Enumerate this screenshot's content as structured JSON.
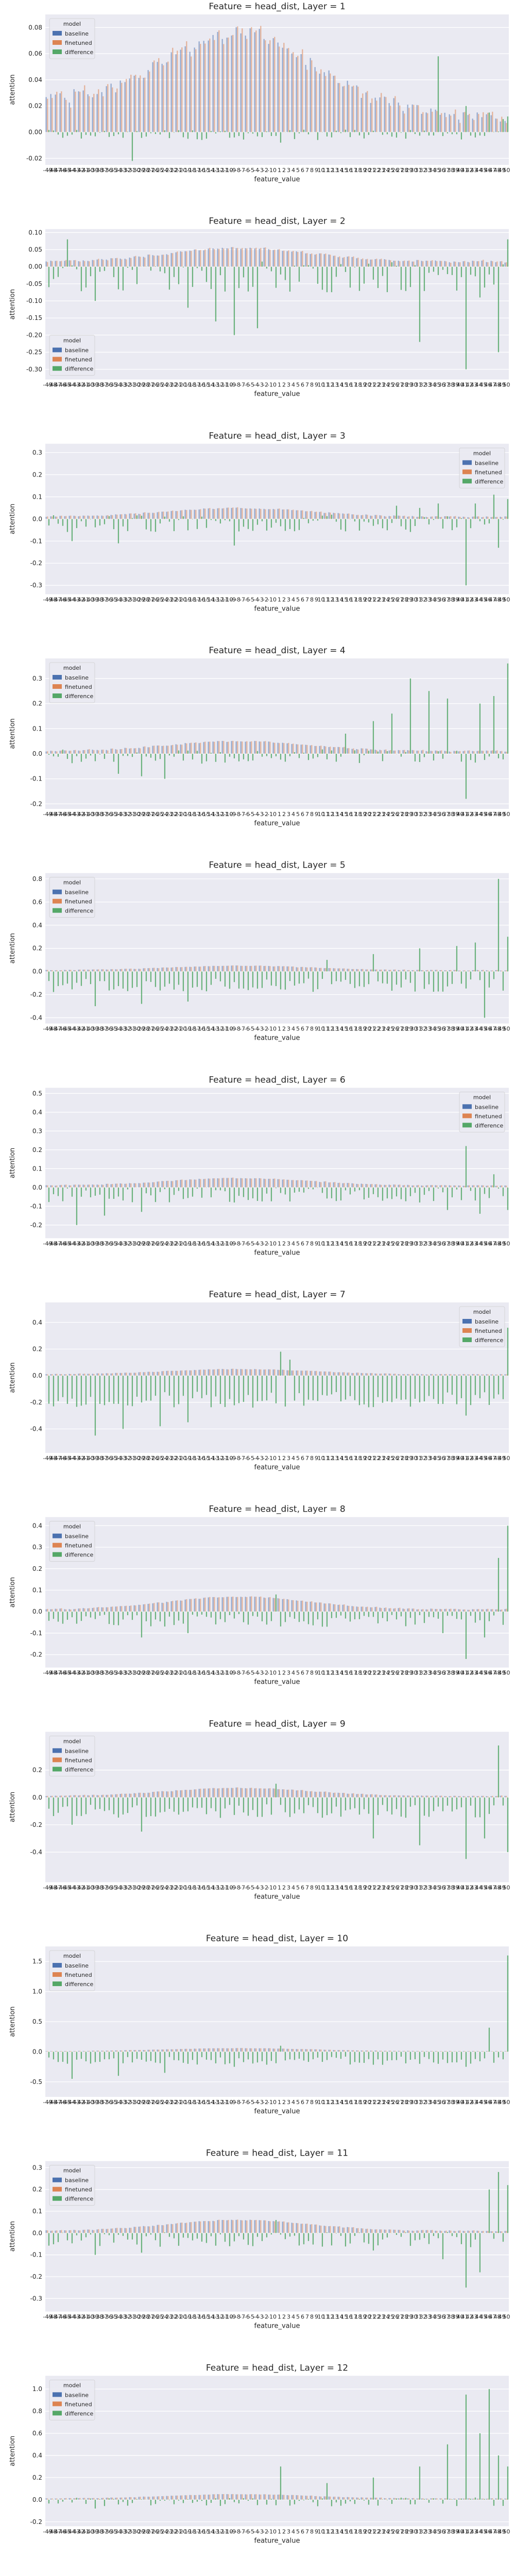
{
  "chart_data": [
    {
      "type": "bar",
      "title": "Feature = head_dist, Layer = 1",
      "xlabel": "feature_value",
      "ylabel": "attention",
      "ylim": [
        -0.025,
        0.09
      ],
      "yticks": [
        -0.02,
        0.0,
        0.02,
        0.04,
        0.06,
        0.08
      ],
      "legend": {
        "position": "top-left",
        "title": "model"
      },
      "base": {
        "start": 0.025,
        "peak": 0.077,
        "end": 0.012
      },
      "noise": 0.01,
      "diff_scale": 0.004,
      "diff_mean": -0.002,
      "seed": 1,
      "diff_spikes": [
        [
          18,
          -0.022
        ],
        [
          50,
          -0.008
        ],
        [
          84,
          0.058
        ],
        [
          90,
          0.02
        ],
        [
          95,
          0.015
        ],
        [
          98,
          0.01
        ],
        [
          99,
          0.012
        ]
      ]
    },
    {
      "type": "bar",
      "title": "Feature = head_dist, Layer = 2",
      "xlabel": "feature_value",
      "ylabel": "attention",
      "ylim": [
        -0.33,
        0.11
      ],
      "yticks": [
        -0.3,
        -0.25,
        -0.2,
        -0.15,
        -0.1,
        -0.05,
        0.0,
        0.05,
        0.1
      ],
      "legend": {
        "position": "bottom-left",
        "title": "model"
      },
      "base": {
        "start": 0.015,
        "peak": 0.055,
        "end": 0.015
      },
      "noise": 0.006,
      "diff_scale": 0.045,
      "diff_mean": -0.03,
      "seed": 2,
      "diff_spikes": [
        [
          4,
          0.08
        ],
        [
          10,
          -0.1
        ],
        [
          30,
          -0.12
        ],
        [
          36,
          -0.16
        ],
        [
          40,
          -0.2
        ],
        [
          45,
          -0.18
        ],
        [
          58,
          -0.05
        ],
        [
          80,
          -0.22
        ],
        [
          90,
          -0.3
        ],
        [
          93,
          -0.09
        ],
        [
          97,
          -0.25
        ],
        [
          99,
          0.08
        ]
      ]
    },
    {
      "type": "bar",
      "title": "Feature = head_dist, Layer = 3",
      "xlabel": "feature_value",
      "ylabel": "attention",
      "ylim": [
        -0.34,
        0.34
      ],
      "yticks": [
        -0.3,
        -0.2,
        -0.1,
        0.0,
        0.1,
        0.2,
        0.3
      ],
      "legend": {
        "position": "top-right",
        "title": "model"
      },
      "base": {
        "start": 0.01,
        "peak": 0.05,
        "end": 0.01
      },
      "noise": 0.005,
      "diff_scale": 0.04,
      "diff_mean": -0.02,
      "seed": 3,
      "diff_spikes": [
        [
          5,
          -0.1
        ],
        [
          15,
          -0.11
        ],
        [
          40,
          -0.12
        ],
        [
          75,
          0.06
        ],
        [
          80,
          0.05
        ],
        [
          84,
          0.07
        ],
        [
          90,
          -0.3
        ],
        [
          92,
          0.07
        ],
        [
          96,
          0.11
        ],
        [
          97,
          -0.13
        ],
        [
          99,
          0.09
        ]
      ]
    },
    {
      "type": "bar",
      "title": "Feature = head_dist, Layer = 4",
      "xlabel": "feature_value",
      "ylabel": "attention",
      "ylim": [
        -0.22,
        0.38
      ],
      "yticks": [
        -0.2,
        -0.1,
        0.0,
        0.1,
        0.2,
        0.3
      ],
      "legend": {
        "position": "top-left",
        "title": "model"
      },
      "base": {
        "start": 0.01,
        "peak": 0.05,
        "end": 0.01
      },
      "noise": 0.005,
      "diff_scale": 0.03,
      "diff_mean": -0.01,
      "seed": 4,
      "diff_spikes": [
        [
          15,
          -0.08
        ],
        [
          20,
          -0.09
        ],
        [
          25,
          -0.1
        ],
        [
          64,
          0.08
        ],
        [
          70,
          0.13
        ],
        [
          74,
          0.16
        ],
        [
          78,
          0.3
        ],
        [
          82,
          0.25
        ],
        [
          86,
          0.22
        ],
        [
          90,
          -0.18
        ],
        [
          93,
          0.2
        ],
        [
          96,
          0.23
        ],
        [
          99,
          0.36
        ]
      ]
    },
    {
      "type": "bar",
      "title": "Feature = head_dist, Layer = 5",
      "xlabel": "feature_value",
      "ylabel": "attention",
      "ylim": [
        -0.45,
        0.85
      ],
      "yticks": [
        -0.4,
        -0.2,
        0.0,
        0.2,
        0.4,
        0.6,
        0.8
      ],
      "legend": {
        "position": "top-left",
        "title": "model"
      },
      "base": {
        "start": 0.01,
        "peak": 0.05,
        "end": 0.01
      },
      "noise": 0.005,
      "diff_scale": 0.06,
      "diff_mean": -0.12,
      "seed": 5,
      "diff_spikes": [
        [
          10,
          -0.3
        ],
        [
          20,
          -0.28
        ],
        [
          30,
          -0.26
        ],
        [
          60,
          0.1
        ],
        [
          70,
          0.15
        ],
        [
          80,
          0.2
        ],
        [
          88,
          0.22
        ],
        [
          92,
          0.25
        ],
        [
          94,
          -0.4
        ],
        [
          97,
          0.8
        ],
        [
          99,
          0.3
        ]
      ]
    },
    {
      "type": "bar",
      "title": "Feature = head_dist, Layer = 6",
      "xlabel": "feature_value",
      "ylabel": "attention",
      "ylim": [
        -0.27,
        0.53
      ],
      "yticks": [
        -0.2,
        -0.1,
        0.0,
        0.1,
        0.2,
        0.3,
        0.4,
        0.5
      ],
      "legend": {
        "position": "top-right",
        "title": "model"
      },
      "base": {
        "start": 0.01,
        "peak": 0.05,
        "end": 0.01
      },
      "noise": 0.004,
      "diff_scale": 0.04,
      "diff_mean": -0.04,
      "seed": 6,
      "diff_spikes": [
        [
          6,
          -0.2
        ],
        [
          12,
          -0.15
        ],
        [
          20,
          -0.13
        ],
        [
          40,
          -0.08
        ],
        [
          80,
          -0.08
        ],
        [
          86,
          -0.12
        ],
        [
          90,
          0.22
        ],
        [
          93,
          -0.14
        ],
        [
          96,
          0.07
        ],
        [
          99,
          -0.12
        ]
      ]
    },
    {
      "type": "bar",
      "title": "Feature = head_dist, Layer = 7",
      "xlabel": "feature_value",
      "ylabel": "attention",
      "ylim": [
        -0.58,
        0.55
      ],
      "yticks": [
        -0.4,
        -0.2,
        0.0,
        0.2,
        0.4
      ],
      "legend": {
        "position": "top-right",
        "title": "model"
      },
      "base": {
        "start": 0.01,
        "peak": 0.05,
        "end": 0.01
      },
      "noise": 0.004,
      "diff_scale": 0.06,
      "diff_mean": -0.18,
      "seed": 7,
      "diff_spikes": [
        [
          10,
          -0.45
        ],
        [
          16,
          -0.4
        ],
        [
          24,
          -0.38
        ],
        [
          30,
          -0.35
        ],
        [
          50,
          0.18
        ],
        [
          52,
          0.12
        ],
        [
          60,
          -0.15
        ],
        [
          80,
          -0.2
        ],
        [
          90,
          -0.3
        ],
        [
          95,
          -0.22
        ],
        [
          99,
          0.36
        ]
      ]
    },
    {
      "type": "bar",
      "title": "Feature = head_dist, Layer = 8",
      "xlabel": "feature_value",
      "ylabel": "attention",
      "ylim": [
        -0.26,
        0.44
      ],
      "yticks": [
        -0.2,
        -0.1,
        0.0,
        0.1,
        0.2,
        0.3,
        0.4
      ],
      "legend": {
        "position": "top-left",
        "title": "model"
      },
      "base": {
        "start": 0.01,
        "peak": 0.07,
        "end": 0.01
      },
      "noise": 0.005,
      "diff_scale": 0.03,
      "diff_mean": -0.04,
      "seed": 8,
      "diff_spikes": [
        [
          20,
          -0.12
        ],
        [
          30,
          -0.1
        ],
        [
          49,
          0.08
        ],
        [
          60,
          -0.07
        ],
        [
          85,
          -0.1
        ],
        [
          90,
          -0.22
        ],
        [
          94,
          -0.12
        ],
        [
          97,
          0.25
        ],
        [
          99,
          0.4
        ]
      ]
    },
    {
      "type": "bar",
      "title": "Feature = head_dist, Layer = 9",
      "xlabel": "feature_value",
      "ylabel": "attention",
      "ylim": [
        -0.62,
        0.48
      ],
      "yticks": [
        -0.4,
        -0.2,
        0.0,
        0.2
      ],
      "legend": {
        "position": "top-left",
        "title": "model"
      },
      "base": {
        "start": 0.01,
        "peak": 0.07,
        "end": 0.01
      },
      "noise": 0.005,
      "diff_scale": 0.05,
      "diff_mean": -0.1,
      "seed": 9,
      "diff_spikes": [
        [
          5,
          -0.2
        ],
        [
          20,
          -0.25
        ],
        [
          49,
          0.1
        ],
        [
          70,
          -0.3
        ],
        [
          80,
          -0.35
        ],
        [
          90,
          -0.45
        ],
        [
          94,
          -0.3
        ],
        [
          97,
          0.38
        ],
        [
          99,
          -0.4
        ]
      ]
    },
    {
      "type": "bar",
      "title": "Feature = head_dist, Layer = 10",
      "xlabel": "feature_value",
      "ylabel": "attention",
      "ylim": [
        -0.75,
        1.75
      ],
      "yticks": [
        -0.5,
        0.0,
        0.5,
        1.0,
        1.5
      ],
      "legend": {
        "position": "top-left",
        "title": "model"
      },
      "base": {
        "start": 0.01,
        "peak": 0.06,
        "end": 0.01
      },
      "noise": 0.004,
      "diff_scale": 0.07,
      "diff_mean": -0.15,
      "seed": 10,
      "diff_spikes": [
        [
          5,
          -0.45
        ],
        [
          15,
          -0.4
        ],
        [
          25,
          -0.35
        ],
        [
          40,
          -0.25
        ],
        [
          50,
          0.1
        ],
        [
          80,
          -0.2
        ],
        [
          90,
          -0.25
        ],
        [
          95,
          0.4
        ],
        [
          99,
          1.6
        ]
      ]
    },
    {
      "type": "bar",
      "title": "Feature = head_dist, Layer = 11",
      "xlabel": "feature_value",
      "ylabel": "attention",
      "ylim": [
        -0.36,
        0.33
      ],
      "yticks": [
        -0.3,
        -0.2,
        -0.1,
        0.0,
        0.1,
        0.2,
        0.3
      ],
      "legend": {
        "position": "top-left",
        "title": "model"
      },
      "base": {
        "start": 0.01,
        "peak": 0.06,
        "end": 0.01
      },
      "noise": 0.004,
      "diff_scale": 0.035,
      "diff_mean": -0.03,
      "seed": 11,
      "diff_spikes": [
        [
          10,
          -0.1
        ],
        [
          20,
          -0.09
        ],
        [
          49,
          0.06
        ],
        [
          70,
          -0.08
        ],
        [
          85,
          -0.12
        ],
        [
          90,
          -0.25
        ],
        [
          93,
          -0.18
        ],
        [
          95,
          0.2
        ],
        [
          97,
          0.28
        ],
        [
          99,
          0.22
        ]
      ]
    },
    {
      "type": "bar",
      "title": "Feature = head_dist, Layer = 12",
      "xlabel": "feature_value",
      "ylabel": "attention",
      "ylim": [
        -0.24,
        1.12
      ],
      "yticks": [
        -0.2,
        0.0,
        0.2,
        0.4,
        0.6,
        0.8,
        1.0
      ],
      "legend": {
        "position": "top-left",
        "title": "model"
      },
      "base": {
        "start": 0.01,
        "peak": 0.05,
        "end": 0.01
      },
      "noise": 0.004,
      "diff_scale": 0.04,
      "diff_mean": -0.02,
      "seed": 12,
      "diff_spikes": [
        [
          10,
          -0.08
        ],
        [
          50,
          0.3
        ],
        [
          60,
          0.15
        ],
        [
          70,
          0.2
        ],
        [
          80,
          0.3
        ],
        [
          86,
          0.5
        ],
        [
          90,
          0.95
        ],
        [
          93,
          0.6
        ],
        [
          95,
          1.0
        ],
        [
          97,
          0.4
        ],
        [
          99,
          0.3
        ]
      ]
    }
  ],
  "x_tick_labels": [
    "-49",
    "-48",
    "-47",
    "-46",
    "-45",
    "-44",
    "-43",
    "-42",
    "-41",
    "-40",
    "-39",
    "-38",
    "-37",
    "-36",
    "-35",
    "-34",
    "-33",
    "-32",
    "-31",
    "-30",
    "-29",
    "-28",
    "-27",
    "-26",
    "-25",
    "-24",
    "-23",
    "-22",
    "-21",
    "-20",
    "-19",
    "-18",
    "-17",
    "-16",
    "-15",
    "-14",
    "-13",
    "-12",
    "-11",
    "-10",
    "-9",
    "-8",
    "-7",
    "-6",
    "-5",
    "-4",
    "-3",
    "-2",
    "-1",
    "0",
    "1",
    "2",
    "3",
    "4",
    "5",
    "6",
    "7",
    "8",
    "9",
    "10",
    "11",
    "12",
    "13",
    "14",
    "15",
    "16",
    "17",
    "18",
    "19",
    "20",
    "21",
    "22",
    "23",
    "24",
    "25",
    "26",
    "27",
    "28",
    "29",
    "30",
    "31",
    "32",
    "33",
    "34",
    "35",
    "36",
    "37",
    "38",
    "39",
    "40",
    "41",
    "42",
    "43",
    "44",
    "45",
    "46",
    "47",
    "48",
    "49",
    "50"
  ],
  "legend_items": [
    {
      "label": "baseline",
      "color": "#4c72b0"
    },
    {
      "label": "finetuned",
      "color": "#dd8452"
    },
    {
      "label": "difference",
      "color": "#55a868"
    }
  ],
  "colors": {
    "background": "#eaeaf2",
    "grid": "#ffffff",
    "text": "#262626"
  }
}
